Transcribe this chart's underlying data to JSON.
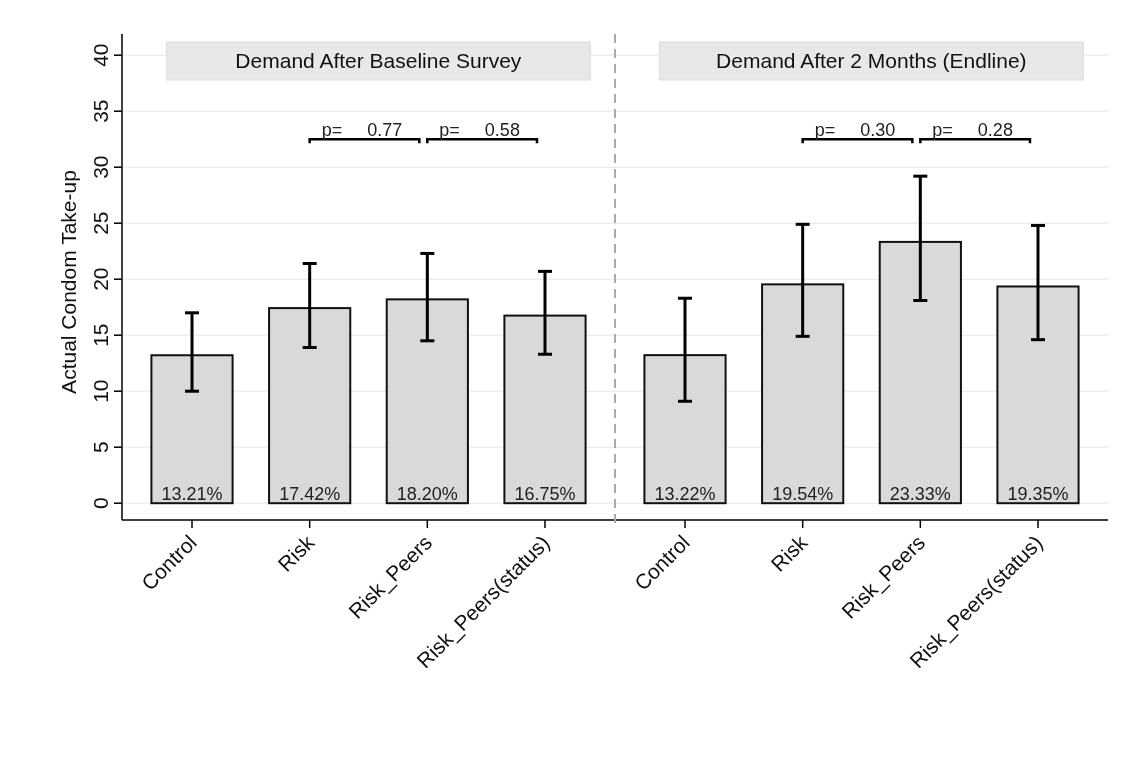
{
  "chart_data": [
    {
      "type": "bar",
      "title": "Demand After Baseline Survey",
      "ylabel": "Actual Condom Take-up",
      "categories": [
        "Control",
        "Risk",
        "Risk_Peers",
        "Risk_Peers(status)"
      ],
      "values": [
        13.21,
        17.42,
        18.2,
        16.75
      ],
      "value_labels": [
        "13.21%",
        "17.42%",
        "18.20%",
        "16.75%"
      ],
      "errors": [
        [
          10.0,
          17.0
        ],
        [
          13.9,
          21.4
        ],
        [
          14.5,
          22.3
        ],
        [
          13.3,
          20.7
        ]
      ],
      "color": "#d9d9d9",
      "ylim": [
        -1.5,
        41
      ],
      "yticks": [
        0,
        5,
        10,
        15,
        20,
        25,
        30,
        35,
        40
      ],
      "grid": "y",
      "annotations": [
        "p=     0.77",
        "p=     0.58"
      ]
    },
    {
      "type": "bar",
      "title": "Demand After 2 Months (Endline)",
      "categories": [
        "Control",
        "Risk",
        "Risk_Peers",
        "Risk_Peers(status)"
      ],
      "values": [
        13.22,
        19.54,
        23.33,
        19.35
      ],
      "value_labels": [
        "13.22%",
        "19.54%",
        "23.33%",
        "19.35%"
      ],
      "errors": [
        [
          9.1,
          18.3
        ],
        [
          14.9,
          24.9
        ],
        [
          18.1,
          29.2
        ],
        [
          14.6,
          24.8
        ]
      ],
      "color": "#d9d9d9",
      "ylim": [
        -1.5,
        41
      ],
      "yticks": [
        0,
        5,
        10,
        15,
        20,
        25,
        30,
        35,
        40
      ],
      "grid": "y",
      "tick_labels": "x",
      "annotations": [
        "p=     0.30",
        "p=     0.28"
      ]
    }
  ]
}
